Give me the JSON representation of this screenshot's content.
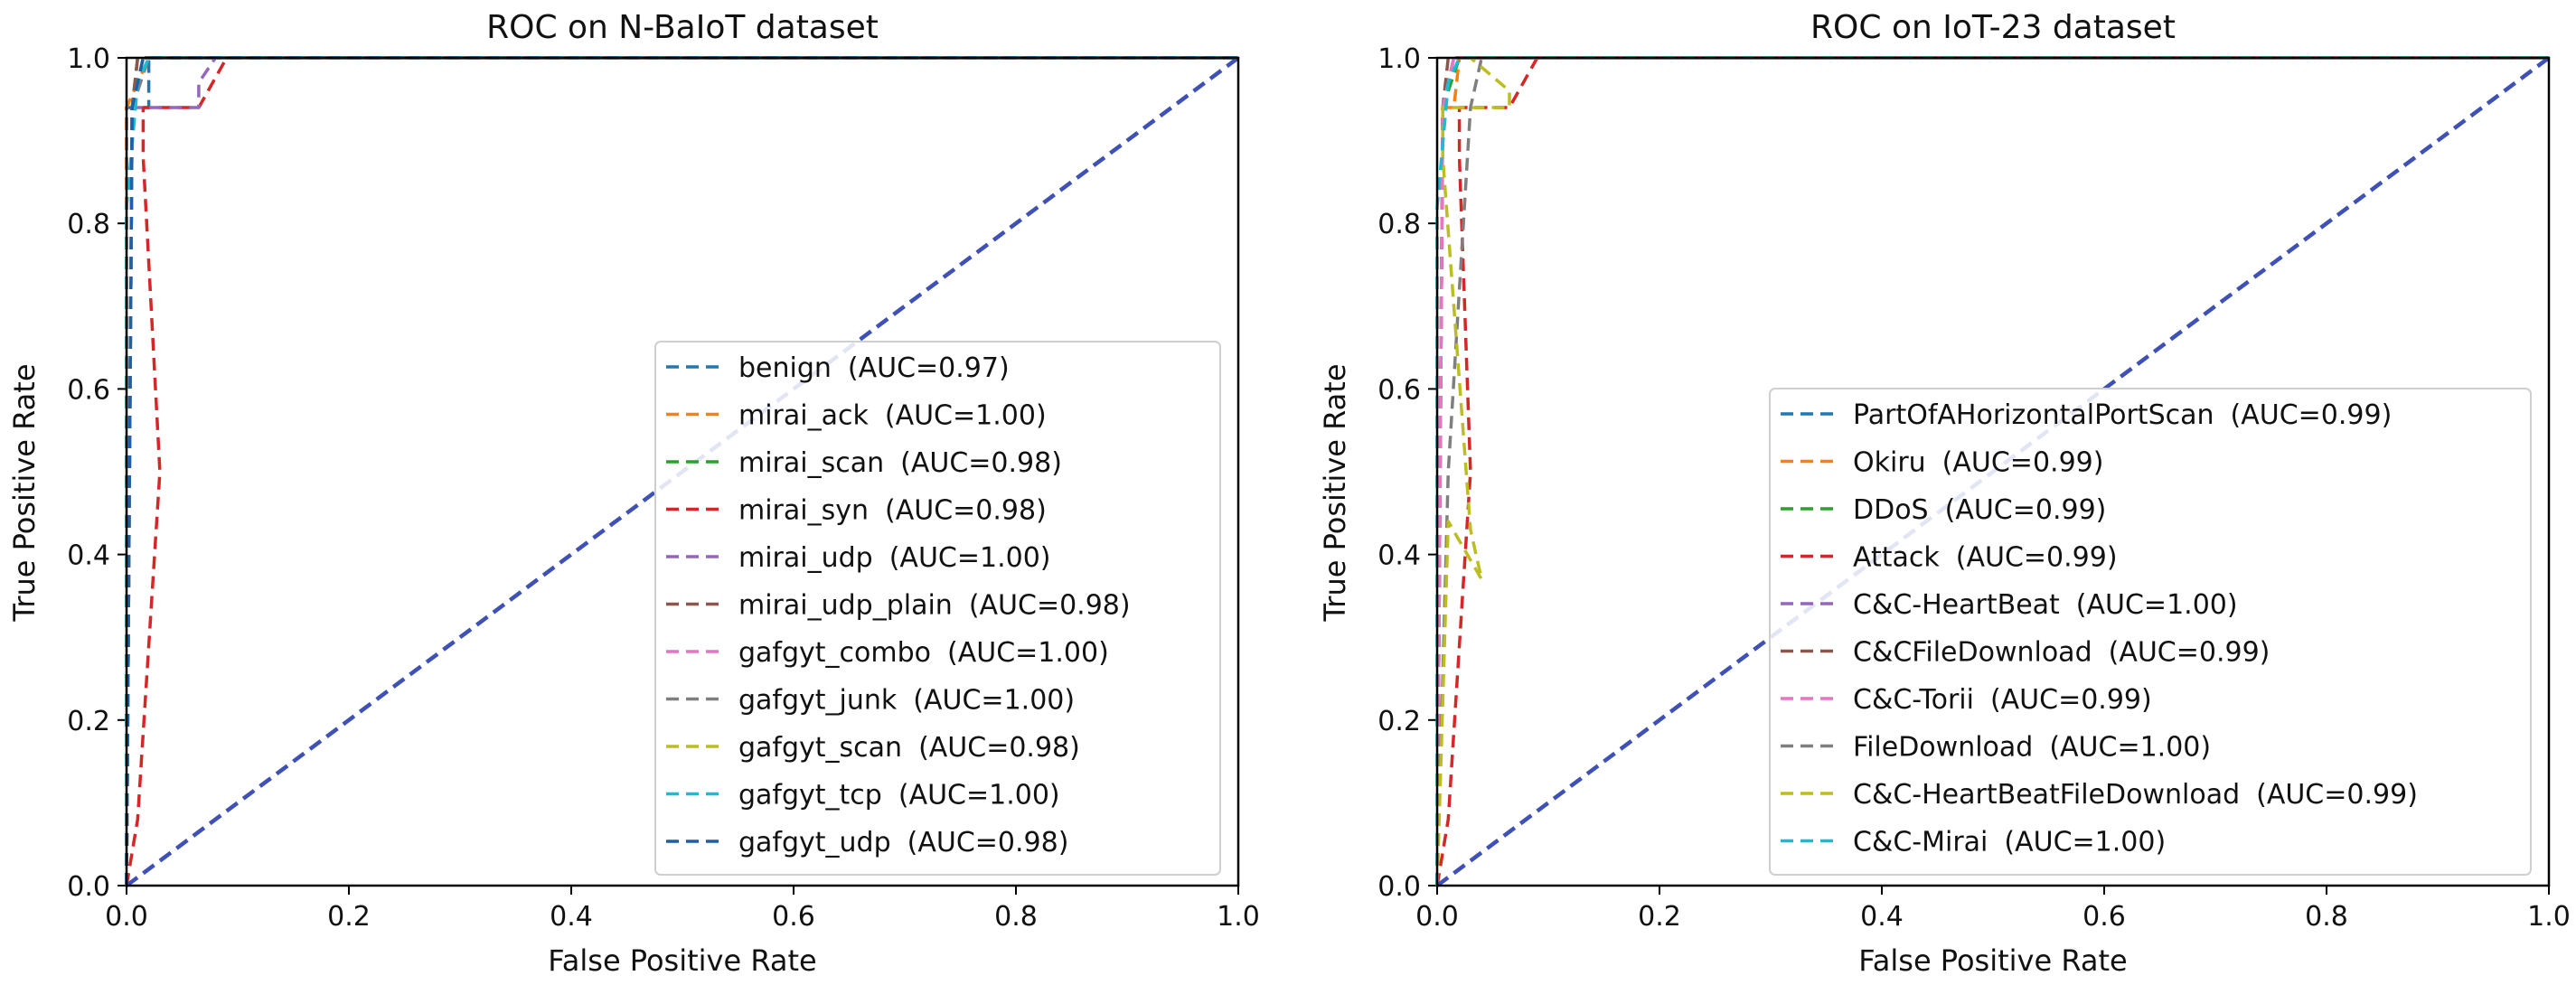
{
  "chart_data": [
    {
      "type": "line",
      "title": "ROC on N-BaIoT dataset",
      "xlabel": "False Positive Rate",
      "ylabel": "True Positive Rate",
      "xlim": [
        0.0,
        1.0
      ],
      "ylim": [
        0.0,
        1.0
      ],
      "xticks": [
        "0.0",
        "0.2",
        "0.4",
        "0.6",
        "0.8",
        "1.0"
      ],
      "yticks": [
        "0.0",
        "0.2",
        "0.4",
        "0.6",
        "0.8",
        "1.0"
      ],
      "legend_position": "lower-right",
      "diagonal": {
        "x": [
          0,
          1
        ],
        "y": [
          0,
          1
        ],
        "color": "#3f51b5"
      },
      "series": [
        {
          "name": "benign",
          "auc": "(AUC=0.97)",
          "color": "#1f77b4",
          "x": [
            0,
            0,
            0.02,
            0.02,
            1
          ],
          "y": [
            0,
            0.94,
            0.94,
            1.0,
            1.0
          ]
        },
        {
          "name": "mirai_ack",
          "auc": "(AUC=1.00)",
          "color": "#ff7f0e",
          "x": [
            0,
            0,
            0.02,
            0.025,
            1
          ],
          "y": [
            0,
            0.94,
            1.0,
            1.0,
            1.0
          ]
        },
        {
          "name": "mirai_scan",
          "auc": "(AUC=0.98)",
          "color": "#2ca02c",
          "x": [
            0,
            0.005,
            0.01,
            0.02,
            1
          ],
          "y": [
            0,
            0.94,
            1.0,
            1.0,
            1.0
          ]
        },
        {
          "name": "mirai_syn",
          "auc": "(AUC=0.98)",
          "color": "#d62728",
          "x": [
            0,
            0.01,
            0.03,
            0.015,
            0.015,
            0.065,
            0.09,
            1
          ],
          "y": [
            0,
            0.08,
            0.5,
            0.88,
            0.94,
            0.94,
            1.0,
            1.0
          ]
        },
        {
          "name": "mirai_udp",
          "auc": "(AUC=1.00)",
          "color": "#9467bd",
          "x": [
            0,
            0.005,
            0.015,
            0.065,
            0.065,
            0.08,
            1
          ],
          "y": [
            0,
            0.94,
            0.94,
            0.94,
            0.97,
            1.0,
            1.0
          ]
        },
        {
          "name": "mirai_udp_plain",
          "auc": "(AUC=0.98)",
          "color": "#8c564b",
          "x": [
            0,
            0.005,
            0.01,
            1
          ],
          "y": [
            0,
            0.94,
            1.0,
            1.0
          ]
        },
        {
          "name": "gafgyt_combo",
          "auc": "(AUC=1.00)",
          "color": "#e377c2",
          "x": [
            0,
            0.005,
            0.015,
            1
          ],
          "y": [
            0,
            0.94,
            1.0,
            1.0
          ]
        },
        {
          "name": "gafgyt_junk",
          "auc": "(AUC=1.00)",
          "color": "#7f7f7f",
          "x": [
            0,
            0.005,
            0.02,
            1
          ],
          "y": [
            0,
            0.94,
            1.0,
            1.0
          ]
        },
        {
          "name": "gafgyt_scan",
          "auc": "(AUC=0.98)",
          "color": "#bcbd22",
          "x": [
            0,
            0.005,
            0.015,
            1
          ],
          "y": [
            0,
            0.94,
            1.0,
            1.0
          ]
        },
        {
          "name": "gafgyt_tcp",
          "auc": "(AUC=1.00)",
          "color": "#17becf",
          "x": [
            0,
            0,
            0.01,
            0.02,
            1
          ],
          "y": [
            0,
            0.82,
            0.97,
            1.0,
            1.0
          ]
        },
        {
          "name": "gafgyt_udp",
          "auc": "(AUC=0.98)",
          "color": "#1f5fa8",
          "x": [
            0,
            0.005,
            0.015,
            1
          ],
          "y": [
            0,
            0.94,
            1.0,
            1.0
          ]
        }
      ]
    },
    {
      "type": "line",
      "title": "ROC on IoT-23 dataset",
      "xlabel": "False Positive Rate",
      "ylabel": "True Positive Rate",
      "xlim": [
        0.0,
        1.0
      ],
      "ylim": [
        0.0,
        1.0
      ],
      "xticks": [
        "0.0",
        "0.2",
        "0.4",
        "0.6",
        "0.8",
        "1.0"
      ],
      "yticks": [
        "0.0",
        "0.2",
        "0.4",
        "0.6",
        "0.8",
        "1.0"
      ],
      "legend_position": "lower-right",
      "diagonal": {
        "x": [
          0,
          1
        ],
        "y": [
          0,
          1
        ],
        "color": "#3f51b5"
      },
      "series": [
        {
          "name": "PartOfAHorizontalPortScan",
          "auc": "(AUC=0.99)",
          "color": "#1f77b4",
          "x": [
            0,
            0.005,
            0.015,
            1
          ],
          "y": [
            0,
            0.94,
            1.0,
            1.0
          ]
        },
        {
          "name": "Okiru",
          "auc": "(AUC=0.99)",
          "color": "#ff7f0e",
          "x": [
            0,
            0.005,
            0.015,
            0.02,
            1
          ],
          "y": [
            0,
            0.94,
            0.94,
            1.0,
            1.0
          ]
        },
        {
          "name": "DDoS",
          "auc": "(AUC=0.99)",
          "color": "#2ca02c",
          "x": [
            0,
            0.005,
            0.02,
            1
          ],
          "y": [
            0,
            0.94,
            1.0,
            1.0
          ]
        },
        {
          "name": "Attack",
          "auc": "(AUC=0.99)",
          "color": "#d62728",
          "x": [
            0,
            0.01,
            0.03,
            0.02,
            0.02,
            0.065,
            0.09,
            1
          ],
          "y": [
            0,
            0.08,
            0.5,
            0.88,
            0.94,
            0.94,
            1.0,
            1.0
          ]
        },
        {
          "name": "C&C-HeartBeat",
          "auc": "(AUC=1.00)",
          "color": "#9467bd",
          "x": [
            0,
            0.005,
            0.015,
            1
          ],
          "y": [
            0,
            0.94,
            1.0,
            1.0
          ]
        },
        {
          "name": "C&CFileDownload",
          "auc": "(AUC=0.99)",
          "color": "#8c564b",
          "x": [
            0,
            0.005,
            0.01,
            1
          ],
          "y": [
            0,
            0.94,
            1.0,
            1.0
          ]
        },
        {
          "name": "C&C-Torii",
          "auc": "(AUC=0.99)",
          "color": "#e377c2",
          "x": [
            0,
            0.005,
            0.015,
            1
          ],
          "y": [
            0,
            0.94,
            1.0,
            1.0
          ]
        },
        {
          "name": "FileDownload",
          "auc": "(AUC=1.00)",
          "color": "#7f7f7f",
          "x": [
            0,
            0.01,
            0.03,
            0.04,
            1
          ],
          "y": [
            0,
            0.5,
            0.94,
            1.0,
            1.0
          ]
        },
        {
          "name": "C&C-HeartBeatFileDownload",
          "auc": "(AUC=0.99)",
          "color": "#bcbd22",
          "x": [
            0,
            0.01,
            0.04,
            0.03,
            0.005,
            0.005,
            0.065,
            0.065,
            0.03,
            0.05,
            1
          ],
          "y": [
            0,
            0.44,
            0.37,
            0.43,
            0.88,
            0.94,
            0.94,
            0.96,
            1.0,
            1.0,
            1.0
          ]
        },
        {
          "name": "C&C-Mirai",
          "auc": "(AUC=1.00)",
          "color": "#17becf",
          "x": [
            0,
            0,
            0.01,
            0.02,
            1
          ],
          "y": [
            0,
            0.82,
            0.97,
            1.0,
            1.0
          ]
        }
      ]
    }
  ]
}
